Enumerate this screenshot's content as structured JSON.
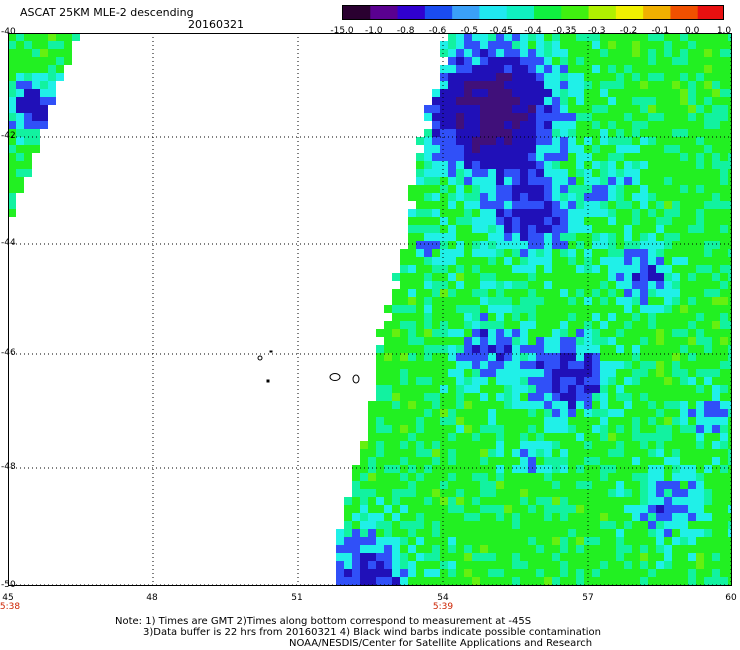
{
  "header": {
    "title": "ASCAT 25KM MLE-2 descending",
    "date": "20160321"
  },
  "colorbar": {
    "labels": [
      "-15.0",
      "-1.0",
      "-0.8",
      "-0.6",
      "-0.5",
      "-0.45",
      "-0.4",
      "-0.35",
      "-0.3",
      "-0.2",
      "-0.1",
      "0.0",
      "1.0"
    ],
    "colors": [
      "#2a0030",
      "#5a0090",
      "#3000d0",
      "#1a4cf0",
      "#3aa0f8",
      "#20e8f0",
      "#10f0c0",
      "#10f040",
      "#40f010",
      "#b0f000",
      "#f0f000",
      "#f0b000",
      "#f05000",
      "#e81010"
    ]
  },
  "map": {
    "lat_labels": [
      "-40",
      "-42",
      "-44",
      "-46",
      "-48",
      "-50"
    ],
    "lon_labels": [
      "45",
      "48",
      "51",
      "54",
      "57",
      "60"
    ],
    "time_labels": [
      {
        "text": "5:38",
        "lon": "45"
      },
      {
        "text": "5:39",
        "lon": "54"
      }
    ],
    "colors": {
      "green": "#22f022",
      "lime": "#66f010",
      "cyan": "#20f0e8",
      "aqua": "#12f2a0",
      "blue": "#3050f8",
      "darkblue": "#2010b8",
      "purple": "#40107a"
    }
  },
  "footer": {
    "note_line1": "Note: 1) Times are GMT 2)Times along bottom correspond to measurement at -45S",
    "note_line2": "3)Data buffer is 22 hrs from 20160321 4) Black wind barbs indicate possible contamination",
    "note_line3": "NOAA/NESDIS/Center for Satellite Applications and Research"
  }
}
